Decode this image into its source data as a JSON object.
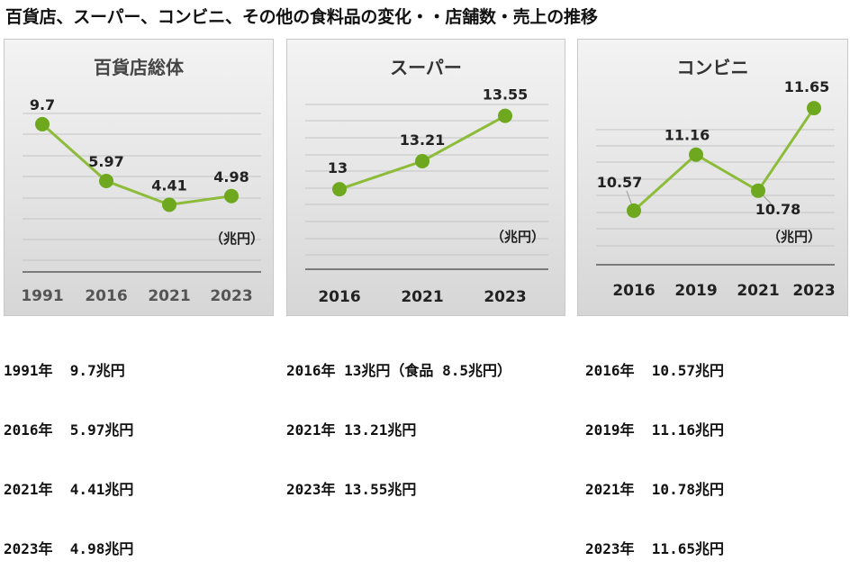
{
  "title": "百貨店、スーパー、コンビニ、その他の食料品の変化・・店舗数・売上の推移",
  "chart_data": [
    {
      "type": "line",
      "title": "百貨店総体",
      "unit": "（兆円）",
      "x": [
        "1991",
        "2016",
        "2021",
        "2023"
      ],
      "values": [
        9.7,
        5.97,
        4.41,
        4.98
      ],
      "labels": [
        "9.7",
        "5.97",
        "4.41",
        "4.98"
      ],
      "ylim": [
        0,
        12
      ],
      "grid": true,
      "line_color": "#8dbb3a",
      "point_color": "#6ea81f"
    },
    {
      "type": "line",
      "title": "スーパー",
      "unit": "（兆円）",
      "x": [
        "2016",
        "2021",
        "2023"
      ],
      "values": [
        13,
        13.21,
        13.55
      ],
      "labels": [
        "13",
        "13.21",
        "13.55"
      ],
      "ylim": [
        12.4,
        13.75
      ],
      "grid": true,
      "line_color": "#8dbb3a",
      "point_color": "#6ea81f"
    },
    {
      "type": "line",
      "title": "コンビニ",
      "unit": "（兆円）",
      "x": [
        "2016",
        "2019",
        "2021",
        "2023"
      ],
      "values": [
        10.57,
        11.16,
        10.78,
        11.65
      ],
      "labels": [
        "10.57",
        "11.16",
        "10.78",
        "11.65"
      ],
      "ylim": [
        10.0,
        11.85
      ],
      "grid": true,
      "line_color": "#8dbb3a",
      "point_color": "#6ea81f"
    }
  ],
  "captions": [
    [
      "1991年  9.7兆円",
      "2016年  5.97兆円",
      "2021年  4.41兆円",
      "2023年  4.98兆円"
    ],
    [
      "2016年 13兆円（食品 8.5兆円）",
      "2021年 13.21兆円",
      "2023年 13.55兆円"
    ],
    [
      "2016年  10.57兆円",
      "2019年  11.16兆円",
      "2021年  10.78兆円",
      "2023年  11.65兆円"
    ]
  ]
}
